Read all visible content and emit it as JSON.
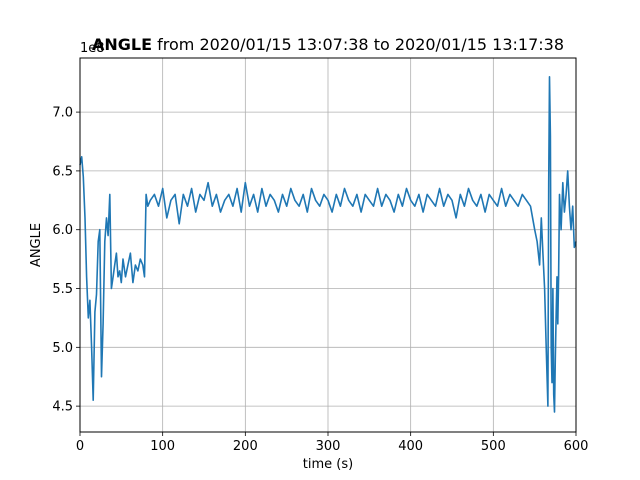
{
  "chart_data": {
    "type": "line",
    "title_bold": "ANGLE",
    "title_rest": " from 2020/01/15 13:07:38 to 2020/01/15 13:17:38",
    "xlabel": "time (s)",
    "ylabel": "ANGLE",
    "y_offset_label": "1e8",
    "xlim": [
      0,
      600
    ],
    "ylim": [
      4.28,
      7.46
    ],
    "x_ticks": [
      0,
      100,
      200,
      300,
      400,
      500,
      600
    ],
    "y_ticks": [
      4.5,
      5.0,
      5.5,
      6.0,
      6.5,
      7.0
    ],
    "x_tick_labels": [
      "0",
      "100",
      "200",
      "300",
      "400",
      "500",
      "600"
    ],
    "y_tick_labels": [
      "4.5",
      "5.0",
      "5.5",
      "6.0",
      "6.5",
      "7.0"
    ],
    "grid": true,
    "line_color": "#1f77b4",
    "series": [
      {
        "x": [
          0,
          2,
          4,
          6,
          8,
          10,
          12,
          14,
          16,
          18,
          20,
          22,
          24,
          26,
          28,
          30,
          32,
          34,
          36,
          38,
          40,
          42,
          44,
          46,
          48,
          50,
          52,
          55,
          58,
          61,
          64,
          67,
          70,
          73,
          76,
          78,
          80,
          82,
          85,
          90,
          95,
          100,
          105,
          110,
          115,
          120,
          125,
          130,
          135,
          140,
          145,
          150,
          155,
          160,
          165,
          170,
          175,
          180,
          185,
          190,
          195,
          200,
          205,
          210,
          215,
          220,
          225,
          230,
          235,
          240,
          245,
          250,
          255,
          260,
          265,
          270,
          275,
          280,
          285,
          290,
          295,
          300,
          305,
          310,
          315,
          320,
          325,
          330,
          335,
          340,
          345,
          350,
          355,
          360,
          365,
          370,
          375,
          380,
          385,
          390,
          395,
          400,
          405,
          410,
          415,
          420,
          425,
          430,
          435,
          440,
          445,
          450,
          455,
          460,
          465,
          470,
          475,
          480,
          485,
          490,
          495,
          500,
          505,
          510,
          515,
          520,
          525,
          530,
          535,
          540,
          545,
          550,
          553,
          556,
          558,
          560,
          562,
          564,
          566,
          567,
          568,
          569,
          570,
          571,
          572,
          573,
          574,
          575,
          576,
          577,
          578,
          579,
          580,
          582,
          584,
          586,
          588,
          590,
          592,
          594,
          596,
          598,
          600
        ],
        "values": [
          6.55,
          6.62,
          6.45,
          6.1,
          5.6,
          5.25,
          5.4,
          5.0,
          4.55,
          5.3,
          5.45,
          5.9,
          6.0,
          4.75,
          5.2,
          5.9,
          6.1,
          5.95,
          6.3,
          5.5,
          5.6,
          5.7,
          5.8,
          5.6,
          5.65,
          5.55,
          5.75,
          5.6,
          5.7,
          5.8,
          5.55,
          5.7,
          5.65,
          5.75,
          5.7,
          5.6,
          6.3,
          6.2,
          6.25,
          6.3,
          6.2,
          6.35,
          6.1,
          6.25,
          6.3,
          6.05,
          6.3,
          6.2,
          6.35,
          6.15,
          6.3,
          6.25,
          6.4,
          6.2,
          6.3,
          6.15,
          6.25,
          6.3,
          6.2,
          6.35,
          6.15,
          6.4,
          6.2,
          6.3,
          6.15,
          6.35,
          6.2,
          6.3,
          6.25,
          6.15,
          6.3,
          6.2,
          6.35,
          6.25,
          6.2,
          6.3,
          6.15,
          6.35,
          6.25,
          6.2,
          6.3,
          6.25,
          6.15,
          6.3,
          6.2,
          6.35,
          6.25,
          6.2,
          6.3,
          6.15,
          6.3,
          6.25,
          6.2,
          6.35,
          6.2,
          6.3,
          6.25,
          6.15,
          6.3,
          6.2,
          6.35,
          6.25,
          6.2,
          6.3,
          6.15,
          6.3,
          6.25,
          6.2,
          6.35,
          6.2,
          6.3,
          6.25,
          6.1,
          6.3,
          6.2,
          6.35,
          6.25,
          6.2,
          6.3,
          6.15,
          6.3,
          6.25,
          6.2,
          6.35,
          6.2,
          6.3,
          6.25,
          6.2,
          6.3,
          6.25,
          6.2,
          6.0,
          5.9,
          5.7,
          6.1,
          5.8,
          5.5,
          5.0,
          4.5,
          6.4,
          7.3,
          6.8,
          5.0,
          4.7,
          5.5,
          4.6,
          4.45,
          4.9,
          5.3,
          5.6,
          5.2,
          5.6,
          6.3,
          6.0,
          6.4,
          6.15,
          6.3,
          6.5,
          6.2,
          6.0,
          6.2,
          5.85,
          5.9
        ]
      }
    ]
  }
}
